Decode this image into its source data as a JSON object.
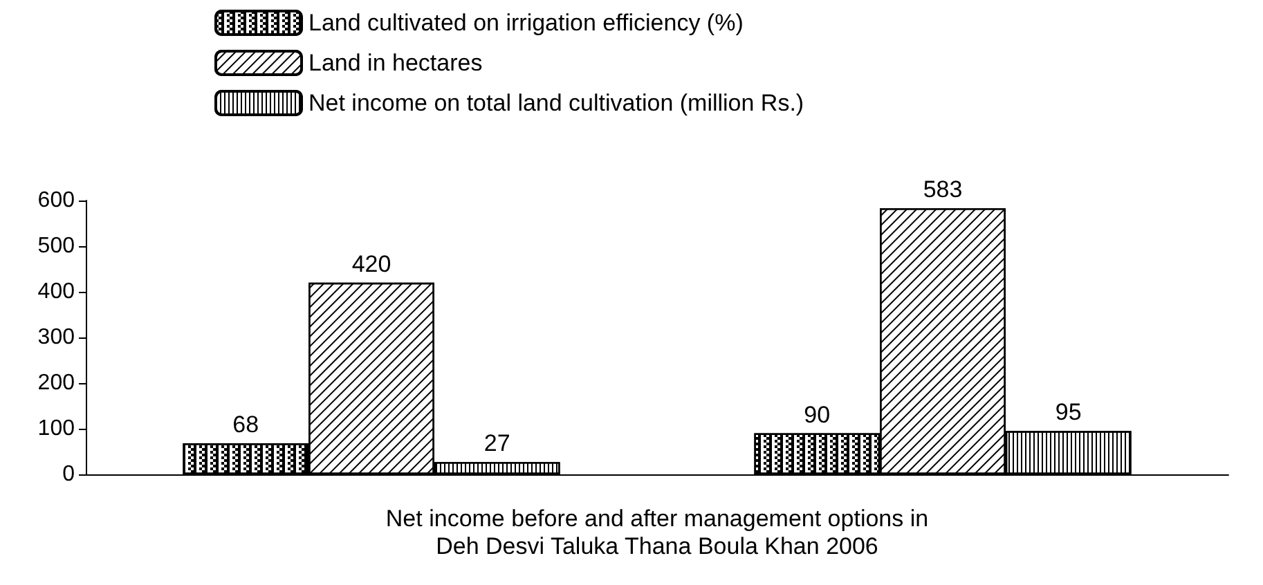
{
  "chart_data": {
    "type": "bar",
    "xlabel": "Net income before and after management options in\nDeh Desvi Taluka Thana Boula Khan 2006",
    "categories": [
      null,
      null
    ],
    "series": [
      {
        "name": "Land cultivated on irrigation efficiency (%)",
        "color": "#ffffff",
        "values": [
          68,
          90
        ]
      },
      {
        "name": "Land in hectares",
        "color": "#ffffff",
        "values": [
          420,
          583
        ]
      },
      {
        "name": "Net income on total land cultivation (million Rs.)",
        "color": "#ffffff",
        "values": [
          27,
          95
        ]
      }
    ],
    "ylim": [
      0,
      600
    ],
    "yticks": [
      0,
      100,
      200,
      300,
      400,
      500,
      600
    ],
    "data_labels": true,
    "legend": "top left",
    "grid": false
  }
}
